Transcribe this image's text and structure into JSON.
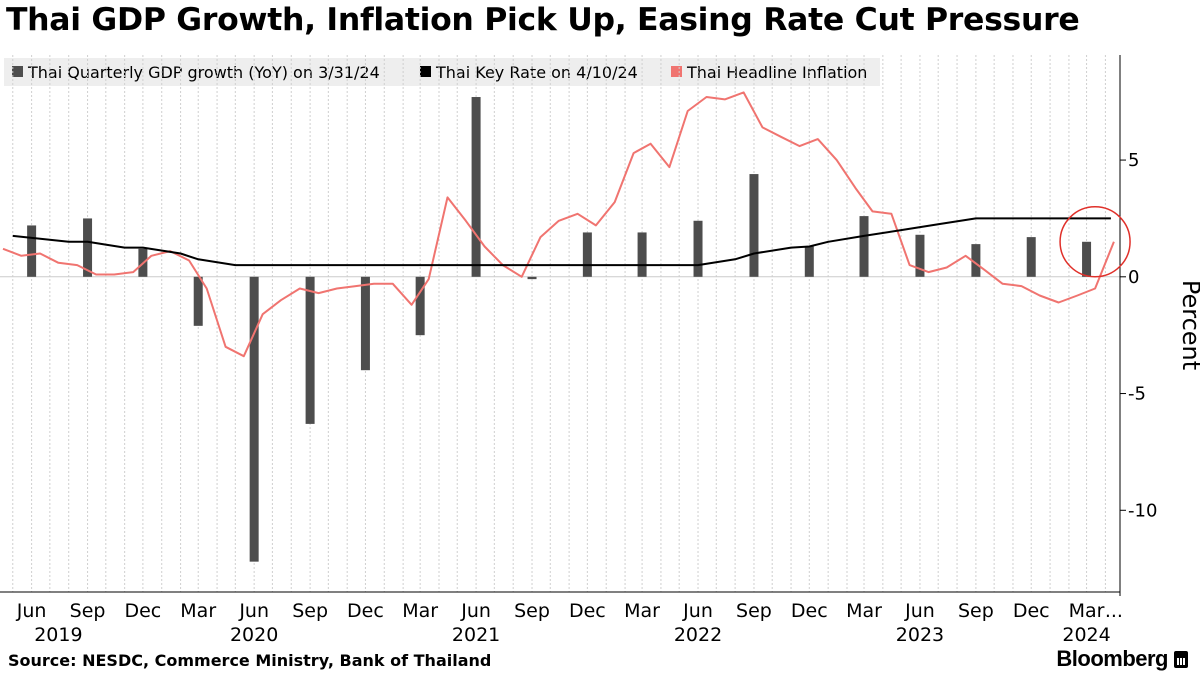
{
  "source": "Source: NESDC, Commerce Ministry, Bank of Thailand",
  "brand": "Bloomberg",
  "chart_data": {
    "type": "bar+line",
    "title": "Thai GDP Growth, Inflation Pick Up, Easing Rate Cut Pressure",
    "ylabel": "Percent",
    "ylim": [
      -13.5,
      9.5
    ],
    "yticks": [
      5,
      0,
      -5,
      -10
    ],
    "ytick_labels": [
      "5",
      "0",
      "-5",
      "-10"
    ],
    "grid": "vertical-dotted",
    "legend_position": "top-left",
    "colors": {
      "gdp": "#4d4d4d",
      "rate": "#000000",
      "inflation": "#f07470",
      "annotation": "#e0302a",
      "zero_line": "#cccccc"
    },
    "x_range": [
      "2019-04-10",
      "2024-04-25"
    ],
    "x_tick_labels": [
      {
        "date": "2019-06-01",
        "label": "Jun"
      },
      {
        "date": "2019-09-01",
        "label": "Sep"
      },
      {
        "date": "2019-12-01",
        "label": "Dec"
      },
      {
        "date": "2020-03-01",
        "label": "Mar"
      },
      {
        "date": "2020-06-01",
        "label": "Jun"
      },
      {
        "date": "2020-09-01",
        "label": "Sep"
      },
      {
        "date": "2020-12-01",
        "label": "Dec"
      },
      {
        "date": "2021-03-01",
        "label": "Mar"
      },
      {
        "date": "2021-06-01",
        "label": "Jun"
      },
      {
        "date": "2021-09-01",
        "label": "Sep"
      },
      {
        "date": "2021-12-01",
        "label": "Dec"
      },
      {
        "date": "2022-03-01",
        "label": "Mar"
      },
      {
        "date": "2022-06-01",
        "label": "Jun"
      },
      {
        "date": "2022-09-01",
        "label": "Sep"
      },
      {
        "date": "2022-12-01",
        "label": "Dec"
      },
      {
        "date": "2023-03-01",
        "label": "Mar"
      },
      {
        "date": "2023-06-01",
        "label": "Jun"
      },
      {
        "date": "2023-09-01",
        "label": "Sep"
      },
      {
        "date": "2023-12-01",
        "label": "Dec"
      },
      {
        "date": "2024-03-01",
        "label": "Mar"
      },
      {
        "date": "2024-04-15",
        "label": "..."
      }
    ],
    "year_labels": [
      {
        "date": "2019-07-15",
        "label": "2019"
      },
      {
        "date": "2020-06-01",
        "label": "2020"
      },
      {
        "date": "2021-06-01",
        "label": "2021"
      },
      {
        "date": "2022-06-01",
        "label": "2022"
      },
      {
        "date": "2023-06-01",
        "label": "2023"
      },
      {
        "date": "2024-03-01",
        "label": "2024"
      }
    ],
    "series": [
      {
        "name": "Thai Quarterly GDP growth (YoY) on 3/31/24",
        "type": "bar",
        "x": [
          "2019-06-01",
          "2019-09-01",
          "2019-12-01",
          "2020-03-01",
          "2020-06-01",
          "2020-09-01",
          "2020-12-01",
          "2021-03-01",
          "2021-06-01",
          "2021-09-01",
          "2021-12-01",
          "2022-03-01",
          "2022-06-01",
          "2022-09-01",
          "2022-12-01",
          "2023-03-01",
          "2023-06-01",
          "2023-09-01",
          "2023-12-01",
          "2024-03-01"
        ],
        "values": [
          2.2,
          2.5,
          1.2,
          -2.1,
          -12.2,
          -6.3,
          -4.0,
          -2.5,
          7.7,
          -0.1,
          1.9,
          1.9,
          2.4,
          4.4,
          1.3,
          2.6,
          1.8,
          1.4,
          1.7,
          1.5
        ]
      },
      {
        "name": "Thai Key Rate on 4/10/24",
        "type": "line",
        "x": [
          "2019-05-01",
          "2019-08-01",
          "2019-09-01",
          "2019-11-01",
          "2019-12-01",
          "2020-02-01",
          "2020-03-01",
          "2020-05-01",
          "2020-06-01",
          "2022-06-01",
          "2022-08-01",
          "2022-09-01",
          "2022-11-01",
          "2022-12-01",
          "2023-01-01",
          "2023-03-01",
          "2023-05-01",
          "2023-07-01",
          "2023-09-01",
          "2023-10-01",
          "2024-04-10"
        ],
        "values": [
          1.75,
          1.5,
          1.5,
          1.25,
          1.25,
          1.0,
          0.75,
          0.5,
          0.5,
          0.5,
          0.75,
          1.0,
          1.25,
          1.3,
          1.5,
          1.75,
          2.0,
          2.25,
          2.5,
          2.5,
          2.5
        ]
      },
      {
        "name": "Thai Headline Inflation",
        "type": "line",
        "x": [
          "2019-04-15",
          "2019-05-15",
          "2019-06-15",
          "2019-07-15",
          "2019-08-15",
          "2019-09-15",
          "2019-10-15",
          "2019-11-15",
          "2019-12-15",
          "2020-01-15",
          "2020-02-15",
          "2020-03-15",
          "2020-04-15",
          "2020-05-15",
          "2020-06-15",
          "2020-07-15",
          "2020-08-15",
          "2020-09-15",
          "2020-10-15",
          "2020-11-15",
          "2020-12-15",
          "2021-01-15",
          "2021-02-15",
          "2021-03-15",
          "2021-04-15",
          "2021-05-15",
          "2021-06-15",
          "2021-07-15",
          "2021-08-15",
          "2021-09-15",
          "2021-10-15",
          "2021-11-15",
          "2021-12-15",
          "2022-01-15",
          "2022-02-15",
          "2022-03-15",
          "2022-04-15",
          "2022-05-15",
          "2022-06-15",
          "2022-07-15",
          "2022-08-15",
          "2022-09-15",
          "2022-10-15",
          "2022-11-15",
          "2022-12-15",
          "2023-01-15",
          "2023-02-15",
          "2023-03-15",
          "2023-04-15",
          "2023-05-15",
          "2023-06-15",
          "2023-07-15",
          "2023-08-15",
          "2023-09-15",
          "2023-10-15",
          "2023-11-15",
          "2023-12-15",
          "2024-01-15",
          "2024-02-15",
          "2024-03-15",
          "2024-04-15"
        ],
        "values": [
          1.2,
          0.9,
          1.0,
          0.6,
          0.5,
          0.1,
          0.1,
          0.2,
          0.9,
          1.1,
          0.7,
          -0.5,
          -3.0,
          -3.4,
          -1.6,
          -1.0,
          -0.5,
          -0.7,
          -0.5,
          -0.4,
          -0.3,
          -0.3,
          -1.2,
          -0.1,
          3.4,
          2.4,
          1.3,
          0.5,
          0.0,
          1.7,
          2.4,
          2.7,
          2.2,
          3.2,
          5.3,
          5.7,
          4.7,
          7.1,
          7.7,
          7.6,
          7.9,
          6.4,
          6.0,
          5.6,
          5.9,
          5.0,
          3.8,
          2.8,
          2.7,
          0.5,
          0.2,
          0.4,
          0.9,
          0.3,
          -0.3,
          -0.4,
          -0.8,
          -1.1,
          -0.8,
          -0.5,
          1.5
        ]
      }
    ],
    "annotations": [
      {
        "type": "circle",
        "center_date": "2024-03-15",
        "center_value": 1.5
      }
    ]
  }
}
